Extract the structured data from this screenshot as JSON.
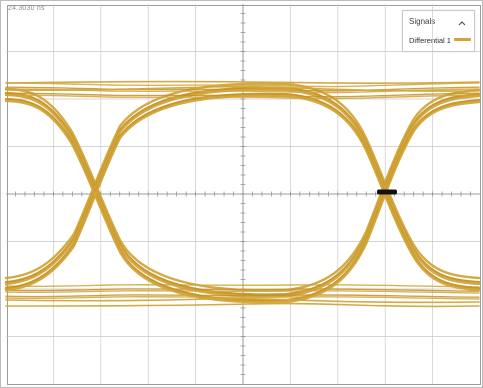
{
  "timebase": {
    "label": "24.3030 ns"
  },
  "legend": {
    "title": "Signals",
    "collapse_icon": "chevron-up-icon",
    "items": [
      {
        "label": "Differential 1",
        "color": "#d2a53a"
      }
    ]
  },
  "plot": {
    "grid_color": "#c9c9c9",
    "axis_color": "#8a8a8a",
    "trace_color": "#d2a53a",
    "trace_color_dark": "#c49227",
    "crossing_marker_color": "#111111",
    "horizontal_divisions": 10,
    "vertical_divisions": 8
  }
}
